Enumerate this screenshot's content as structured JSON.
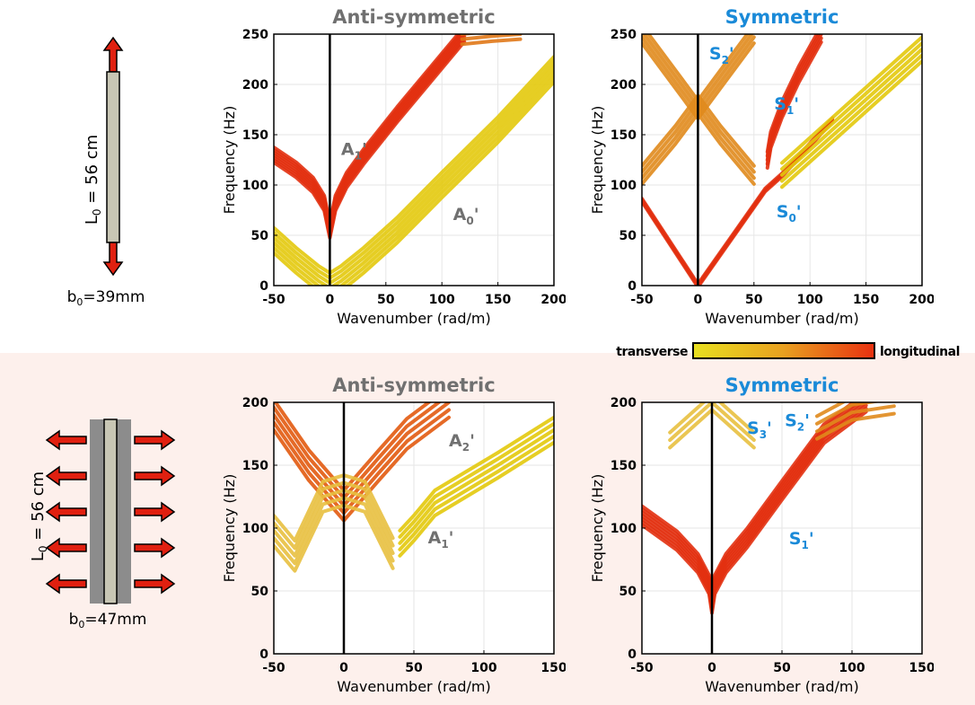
{
  "colorbar": {
    "left_label": "transverse",
    "right_label": "longitudinal",
    "colors": [
      "#e8e020",
      "#e8a020",
      "#e83010"
    ]
  },
  "schematics": [
    {
      "length_label": "L",
      "length_sub": "0",
      "length_value": " = 56 cm",
      "width_label": "b",
      "width_sub": "0",
      "width_value": "=39mm"
    },
    {
      "length_label": "L",
      "length_sub": "0",
      "length_value": " = 56 cm",
      "width_label": "b",
      "width_sub": "0",
      "width_value": "=47mm"
    }
  ],
  "chart_data": [
    {
      "type": "line",
      "title": "Anti-symmetric",
      "title_color": "#707070",
      "xlabel": "Wavenumber (rad/m)",
      "ylabel": "Frequency (Hz)",
      "xlim": [
        -50,
        200
      ],
      "ylim": [
        0,
        250
      ],
      "xticks": [
        -50,
        0,
        50,
        100,
        150,
        200
      ],
      "yticks": [
        0,
        50,
        100,
        150,
        200,
        250
      ],
      "grid": true,
      "series": [
        {
          "name": "A1'",
          "color": "#e23010",
          "bundle": 7,
          "spread": 2.5,
          "x": [
            -50,
            -30,
            -15,
            -5,
            0,
            5,
            15,
            30,
            60,
            90,
            120
          ],
          "y": [
            130,
            115,
            100,
            82,
            55,
            82,
            105,
            128,
            170,
            210,
            250
          ]
        },
        {
          "name": "A0'",
          "color": "#e3c90c",
          "bundle": 6,
          "spread": 5,
          "x": [
            -50,
            -30,
            -10,
            0,
            10,
            30,
            60,
            100,
            150,
            200
          ],
          "y": [
            45,
            25,
            7,
            0,
            7,
            25,
            55,
            100,
            155,
            215
          ]
        },
        {
          "name": "",
          "color": "#e07818",
          "bundle": 3,
          "spread": 5,
          "x": [
            118,
            145,
            170
          ],
          "y": [
            245,
            248,
            250
          ]
        }
      ],
      "annotations": [
        {
          "text": "A",
          "sub": "1",
          "prime": "'",
          "x": 10,
          "y": 130,
          "color": "#707070"
        },
        {
          "text": "A",
          "sub": "0",
          "prime": "'",
          "x": 110,
          "y": 65,
          "color": "#707070"
        }
      ]
    },
    {
      "type": "line",
      "title": "Symmetric",
      "title_color": "#1a8ad8",
      "xlabel": "Wavenumber (rad/m)",
      "ylabel": "Frequency (Hz)",
      "xlim": [
        -50,
        200
      ],
      "ylim": [
        0,
        250
      ],
      "xticks": [
        -50,
        0,
        50,
        100,
        150,
        200
      ],
      "yticks": [
        0,
        50,
        100,
        150,
        200,
        250
      ],
      "grid": true,
      "series": [
        {
          "name": "S0'",
          "color": "#e23010",
          "bundle": 3,
          "spread": 1.5,
          "x": [
            -50,
            0,
            60,
            75,
            100,
            120
          ],
          "y": [
            85,
            0,
            95,
            110,
            140,
            165
          ]
        },
        {
          "name": "",
          "color": "#e3c90c",
          "bundle": 5,
          "spread": 6,
          "x": [
            75,
            120,
            160,
            200
          ],
          "y": [
            110,
            155,
            195,
            235
          ]
        },
        {
          "name": "S1'",
          "color": "#e23010",
          "bundle": 5,
          "spread": 4,
          "x": [
            62,
            65,
            75,
            90,
            110
          ],
          "y": [
            125,
            145,
            175,
            210,
            250
          ]
        },
        {
          "name": "S2'",
          "color": "#e08a1c",
          "bundle": 4,
          "spread": 6,
          "x": [
            -50,
            -20,
            0,
            20,
            50
          ],
          "y": [
            250,
            205,
            175,
            205,
            250
          ]
        },
        {
          "name": "",
          "color": "#e08a1c",
          "bundle": 4,
          "spread": 6,
          "x": [
            -50,
            -20,
            0,
            20,
            50
          ],
          "y": [
            110,
            150,
            180,
            150,
            110
          ]
        }
      ],
      "annotations": [
        {
          "text": "S",
          "sub": "2",
          "prime": "'",
          "x": 10,
          "y": 225,
          "color": "#1a8ad8"
        },
        {
          "text": "S",
          "sub": "1",
          "prime": "'",
          "x": 68,
          "y": 175,
          "color": "#1a8ad8"
        },
        {
          "text": "S",
          "sub": "0",
          "prime": "'",
          "x": 70,
          "y": 68,
          "color": "#1a8ad8"
        }
      ]
    },
    {
      "type": "line",
      "title": "Anti-symmetric",
      "title_color": "#707070",
      "xlabel": "Wavenumber (rad/m)",
      "ylabel": "Frequency (Hz)",
      "xlim": [
        -50,
        150
      ],
      "ylim": [
        0,
        200
      ],
      "xticks": [
        -50,
        0,
        50,
        100,
        150
      ],
      "yticks": [
        0,
        50,
        100,
        150,
        200
      ],
      "grid": true,
      "series": [
        {
          "name": "A2'",
          "color": "#e25a10",
          "bundle": 5,
          "spread": 6,
          "x": [
            -50,
            -25,
            0,
            25,
            45,
            75
          ],
          "y": [
            190,
            150,
            118,
            150,
            175,
            200
          ]
        },
        {
          "name": "",
          "color": "#e8c040",
          "bundle": 5,
          "spread": 6,
          "x": [
            -50,
            -35,
            -15,
            0,
            15,
            35
          ],
          "y": [
            98,
            78,
            125,
            130,
            125,
            80
          ]
        },
        {
          "name": "A1'",
          "color": "#e3c90c",
          "bundle": 5,
          "spread": 5,
          "x": [
            40,
            50,
            65,
            80,
            110,
            150
          ],
          "y": [
            88,
            100,
            120,
            130,
            150,
            178
          ]
        }
      ],
      "annotations": [
        {
          "text": "A",
          "sub": "2",
          "prime": "'",
          "x": 75,
          "y": 165,
          "color": "#707070"
        },
        {
          "text": "A",
          "sub": "1",
          "prime": "'",
          "x": 60,
          "y": 88,
          "color": "#707070"
        }
      ]
    },
    {
      "type": "line",
      "title": "Symmetric",
      "title_color": "#1a8ad8",
      "xlabel": "Wavenumber (rad/m)",
      "ylabel": "Frequency (Hz)",
      "xlim": [
        -50,
        150
      ],
      "ylim": [
        0,
        200
      ],
      "xticks": [
        -50,
        0,
        50,
        100,
        150
      ],
      "yticks": [
        0,
        50,
        100,
        150,
        200
      ],
      "grid": true,
      "series": [
        {
          "name": "S1'",
          "color": "#e23010",
          "bundle": 7,
          "spread": 2.5,
          "x": [
            -50,
            -25,
            -10,
            -2,
            0,
            2,
            10,
            25,
            50,
            80,
            110
          ],
          "y": [
            110,
            90,
            72,
            55,
            40,
            55,
            72,
            92,
            130,
            175,
            200
          ]
        },
        {
          "name": "S2'",
          "color": "#e08a1c",
          "bundle": 4,
          "spread": 6,
          "x": [
            75,
            100,
            130
          ],
          "y": [
            180,
            195,
            200
          ]
        },
        {
          "name": "S3'",
          "color": "#e8c040",
          "bundle": 3,
          "spread": 6,
          "x": [
            -30,
            -10,
            0,
            10,
            30
          ],
          "y": [
            170,
            190,
            200,
            190,
            170
          ]
        }
      ],
      "annotations": [
        {
          "text": "S",
          "sub": "3",
          "prime": "'",
          "x": 25,
          "y": 175,
          "color": "#1a8ad8"
        },
        {
          "text": "S",
          "sub": "2",
          "prime": "'",
          "x": 52,
          "y": 181,
          "color": "#1a8ad8"
        },
        {
          "text": "S",
          "sub": "1",
          "prime": "'",
          "x": 55,
          "y": 87,
          "color": "#1a8ad8"
        }
      ]
    }
  ]
}
